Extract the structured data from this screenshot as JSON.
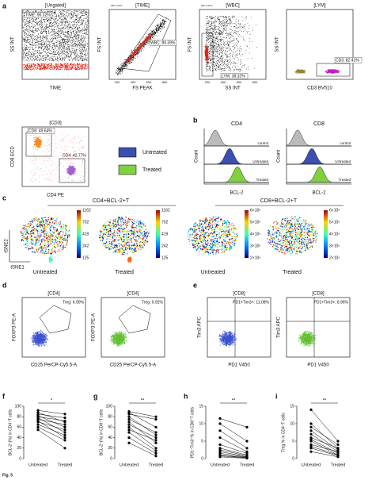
{
  "figure": {
    "panel_labels": [
      "a",
      "b",
      "c",
      "d",
      "e",
      "f",
      "g",
      "h",
      "i"
    ],
    "a": [
      {
        "title": "[Ungated]",
        "gate": "TIME: 96.32%",
        "x_label": "TIME",
        "y_label": "SS INT"
      },
      {
        "title": "[TIME]",
        "header": "20k events",
        "gate": "WBC: 89.39%",
        "x_label": "FS PEAK",
        "y_label": "FS INT",
        "x_ticks": [
          "200",
          "400",
          "600",
          "800"
        ]
      },
      {
        "title": "[WBC]",
        "header": "20k events",
        "gate": "LYM: 38.32%",
        "x_label": "SS INT",
        "y_label": "FS INT",
        "x_ticks": [
          "200",
          "400",
          "600",
          "800"
        ]
      },
      {
        "title": "[LYM]",
        "gate": "CD3: 82.41%",
        "x_label": "CD3 BV510",
        "y_label": "SS INT"
      },
      {
        "title": "[CD3]",
        "gate": "CD8: 49.64%",
        "gate2": "CD4: 42.77%",
        "x_label": "CD4 PE",
        "y_label": "CD8 ECD"
      }
    ],
    "legend": [
      "Untreated",
      "Treated"
    ],
    "b": {
      "titles": [
        "CD4",
        "CD8"
      ],
      "y_label": "Count",
      "x_label": "BCL-2",
      "rows": [
        "control",
        "Untreated",
        "Treated"
      ]
    },
    "c": {
      "groups": [
        "CD4+BCL-2+T",
        "CD8+BCL-2+T"
      ],
      "y_label": "tSNE2",
      "x_label": "tSNE1",
      "samples": [
        "Untreated",
        "Treated"
      ],
      "cd4_scale": [
        "1162",
        "702",
        "419",
        "242",
        "125"
      ],
      "cd8_scale": [
        "6×10⁶",
        "5×10⁶",
        "4×10⁶",
        "3×10⁶",
        "2×10⁶"
      ]
    },
    "d": {
      "titles": [
        "[CD4]",
        "[CD4]"
      ],
      "gates": [
        "Treg: 6.90%",
        "Treg: 0.92%"
      ],
      "x_label": "CD25 PerCP-Cy5.5-A",
      "y_label": "FOXP3 PE-A"
    },
    "e": {
      "titles": [
        "[CD8]",
        "[CD8]"
      ],
      "gates": [
        "PD1+Tim3+: 11.08%",
        "PD1+Tim3+: 8.96%"
      ],
      "x_label": "PD1 V450",
      "y_label": "Tim3 APC"
    },
    "caption": "Fig. 5"
  },
  "chart_data": [
    {
      "type": "paired",
      "y_label": "BCL-2⁺(%) in CD4⁺T cells",
      "significance": "*",
      "categories": [
        "Untreated",
        "Treated"
      ],
      "ylim": [
        0,
        100
      ],
      "yticks": [
        0,
        20,
        40,
        60,
        80,
        100
      ],
      "untreated": [
        92,
        88,
        85,
        82,
        80,
        78,
        75,
        72,
        70,
        65,
        60,
        55
      ],
      "treated": [
        85,
        70,
        78,
        60,
        72,
        50,
        65,
        40,
        55,
        45,
        35,
        20
      ]
    },
    {
      "type": "paired",
      "y_label": "BCL-2⁺(%) in CD8⁺T cells",
      "significance": "**",
      "categories": [
        "Untreated",
        "Treated"
      ],
      "ylim": [
        0,
        100
      ],
      "yticks": [
        0,
        20,
        40,
        60,
        80,
        100
      ],
      "untreated": [
        90,
        88,
        85,
        80,
        75,
        70,
        65,
        60,
        55,
        50,
        40,
        30
      ],
      "treated": [
        80,
        60,
        75,
        45,
        50,
        30,
        40,
        20,
        35,
        15,
        10,
        5
      ]
    },
    {
      "type": "paired",
      "y_label": "PD1⁺Tim3⁺% in CD8⁺T cells",
      "significance": "**",
      "categories": [
        "Untreated",
        "Treated"
      ],
      "ylim": [
        0,
        15
      ],
      "yticks": [
        0,
        5,
        10,
        15
      ],
      "untreated": [
        11.5,
        10,
        8,
        6,
        4,
        3,
        2.5,
        2,
        1.5,
        1,
        0.8,
        0.5
      ],
      "treated": [
        9,
        5,
        3,
        2,
        1.5,
        1,
        0.8,
        0.5,
        0.4,
        0.3,
        0.2,
        0.1
      ]
    },
    {
      "type": "paired",
      "y_label": "Treg % in CD4⁺T cells",
      "significance": "**",
      "categories": [
        "Untreated",
        "Treated"
      ],
      "ylim": [
        0,
        15
      ],
      "yticks": [
        0,
        5,
        10,
        15
      ],
      "untreated": [
        14,
        10,
        9,
        8,
        7,
        6,
        5.5,
        5,
        4,
        3.5,
        3,
        2
      ],
      "treated": [
        5,
        3,
        4,
        2.5,
        2,
        3,
        1.5,
        1,
        2,
        1,
        0.8,
        0.5
      ]
    }
  ]
}
